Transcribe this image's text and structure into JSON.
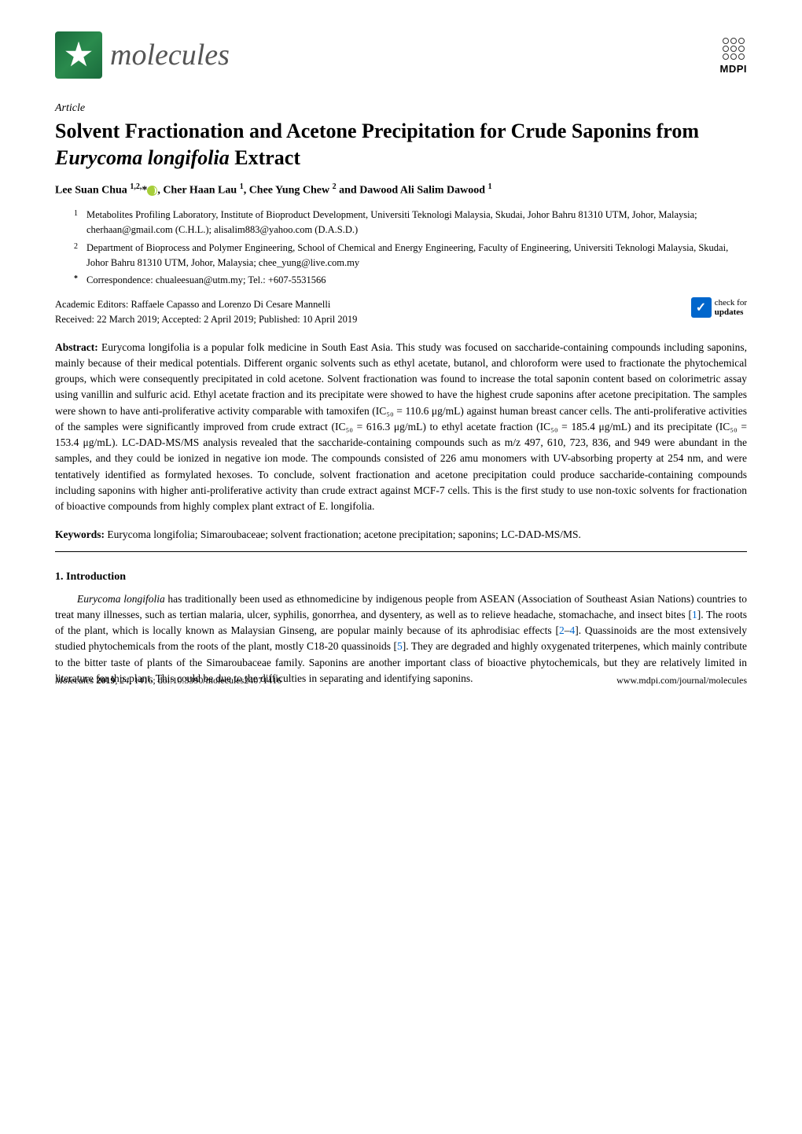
{
  "header": {
    "journal_name": "molecules",
    "publisher": "MDPI"
  },
  "article": {
    "type": "Article",
    "title": "Solvent Fractionation and Acetone Precipitation for Crude Saponins from Eurycoma longifolia Extract",
    "title_part1": "Solvent Fractionation and Acetone Precipitation for Crude Saponins from ",
    "title_italic": "Eurycoma longifolia",
    "title_part2": " Extract"
  },
  "authors": {
    "line_part1": "Lee Suan Chua ",
    "sup1": "1,2,",
    "asterisk": "*",
    "line_part2": ", Cher Haan Lau ",
    "sup2": "1",
    "line_part3": ", Chee Yung Chew ",
    "sup3": "2",
    "line_part4": " and Dawood Ali Salim Dawood ",
    "sup4": "1"
  },
  "affiliations": [
    {
      "num": "1",
      "text": "Metabolites Profiling Laboratory, Institute of Bioproduct Development, Universiti Teknologi Malaysia, Skudai, Johor Bahru 81310 UTM, Johor, Malaysia; cherhaan@gmail.com (C.H.L.); alisalim883@yahoo.com (D.A.S.D.)"
    },
    {
      "num": "2",
      "text": "Department of Bioprocess and Polymer Engineering, School of Chemical and Energy Engineering, Faculty of Engineering, Universiti Teknologi Malaysia, Skudai, Johor Bahru 81310 UTM, Johor, Malaysia; chee_yung@live.com.my"
    },
    {
      "num": "*",
      "text": "Correspondence: chualeesuan@utm.my; Tel.: +607-5531566"
    }
  ],
  "editorial": {
    "editors": "Academic Editors: Raffaele Capasso and Lorenzo Di Cesare Mannelli",
    "dates": "Received: 22 March 2019; Accepted: 2 April 2019; Published: 10 April 2019",
    "check_label1": "check for",
    "check_label2": "updates"
  },
  "abstract": {
    "label": "Abstract:",
    "text": " Eurycoma longifolia is a popular folk medicine in South East Asia. This study was focused on saccharide-containing compounds including saponins, mainly because of their medical potentials. Different organic solvents such as ethyl acetate, butanol, and chloroform were used to fractionate the phytochemical groups, which were consequently precipitated in cold acetone. Solvent fractionation was found to increase the total saponin content based on colorimetric assay using vanillin and sulfuric acid. Ethyl acetate fraction and its precipitate were showed to have the highest crude saponins after acetone precipitation. The samples were shown to have anti-proliferative activity comparable with tamoxifen (IC₅₀ = 110.6 μg/mL) against human breast cancer cells. The anti-proliferative activities of the samples were significantly improved from crude extract (IC₅₀ = 616.3 μg/mL) to ethyl acetate fraction (IC₅₀ = 185.4 μg/mL) and its precipitate (IC₅₀ = 153.4 μg/mL). LC-DAD-MS/MS analysis revealed that the saccharide-containing compounds such as m/z 497, 610, 723, 836, and 949 were abundant in the samples, and they could be ionized in negative ion mode. The compounds consisted of 226 amu monomers with UV-absorbing property at 254 nm, and were tentatively identified as formylated hexoses. To conclude, solvent fractionation and acetone precipitation could produce saccharide-containing compounds including saponins with higher anti-proliferative activity than crude extract against MCF-7 cells. This is the first study to use non-toxic solvents for fractionation of bioactive compounds from highly complex plant extract of E. longifolia."
  },
  "keywords": {
    "label": "Keywords:",
    "text": " Eurycoma longifolia; Simaroubaceae; solvent fractionation; acetone precipitation; saponins; LC-DAD-MS/MS."
  },
  "section1": {
    "heading": "1. Introduction",
    "body_pre": "Eurycoma longifolia",
    "body": " has traditionally been used as ethnomedicine by indigenous people from ASEAN (Association of Southeast Asian Nations) countries to treat many illnesses, such as tertian malaria, ulcer, syphilis, gonorrhea, and dysentery, as well as to relieve headache, stomachache, and insect bites [",
    "ref1": "1",
    "body2": "]. The roots of the plant, which is locally known as Malaysian Ginseng, are popular mainly because of its aphrodisiac effects [",
    "ref2": "2",
    "refdash": "–",
    "ref3": "4",
    "body3": "]. Quassinoids are the most extensively studied phytochemicals from the roots of the plant, mostly C18-20 quassinoids [",
    "ref4": "5",
    "body4": "]. They are degraded and highly oxygenated triterpenes, which mainly contribute to the bitter taste of plants of the Simaroubaceae family. Saponins are another important class of bioactive phytochemicals, but they are relatively limited in literature for this plant. This could be due to the difficulties in separating and identifying saponins."
  },
  "footer": {
    "left": "Molecules 2019, 24, 1416; doi:10.3390/molecules24071416",
    "right": "www.mdpi.com/journal/molecules"
  }
}
